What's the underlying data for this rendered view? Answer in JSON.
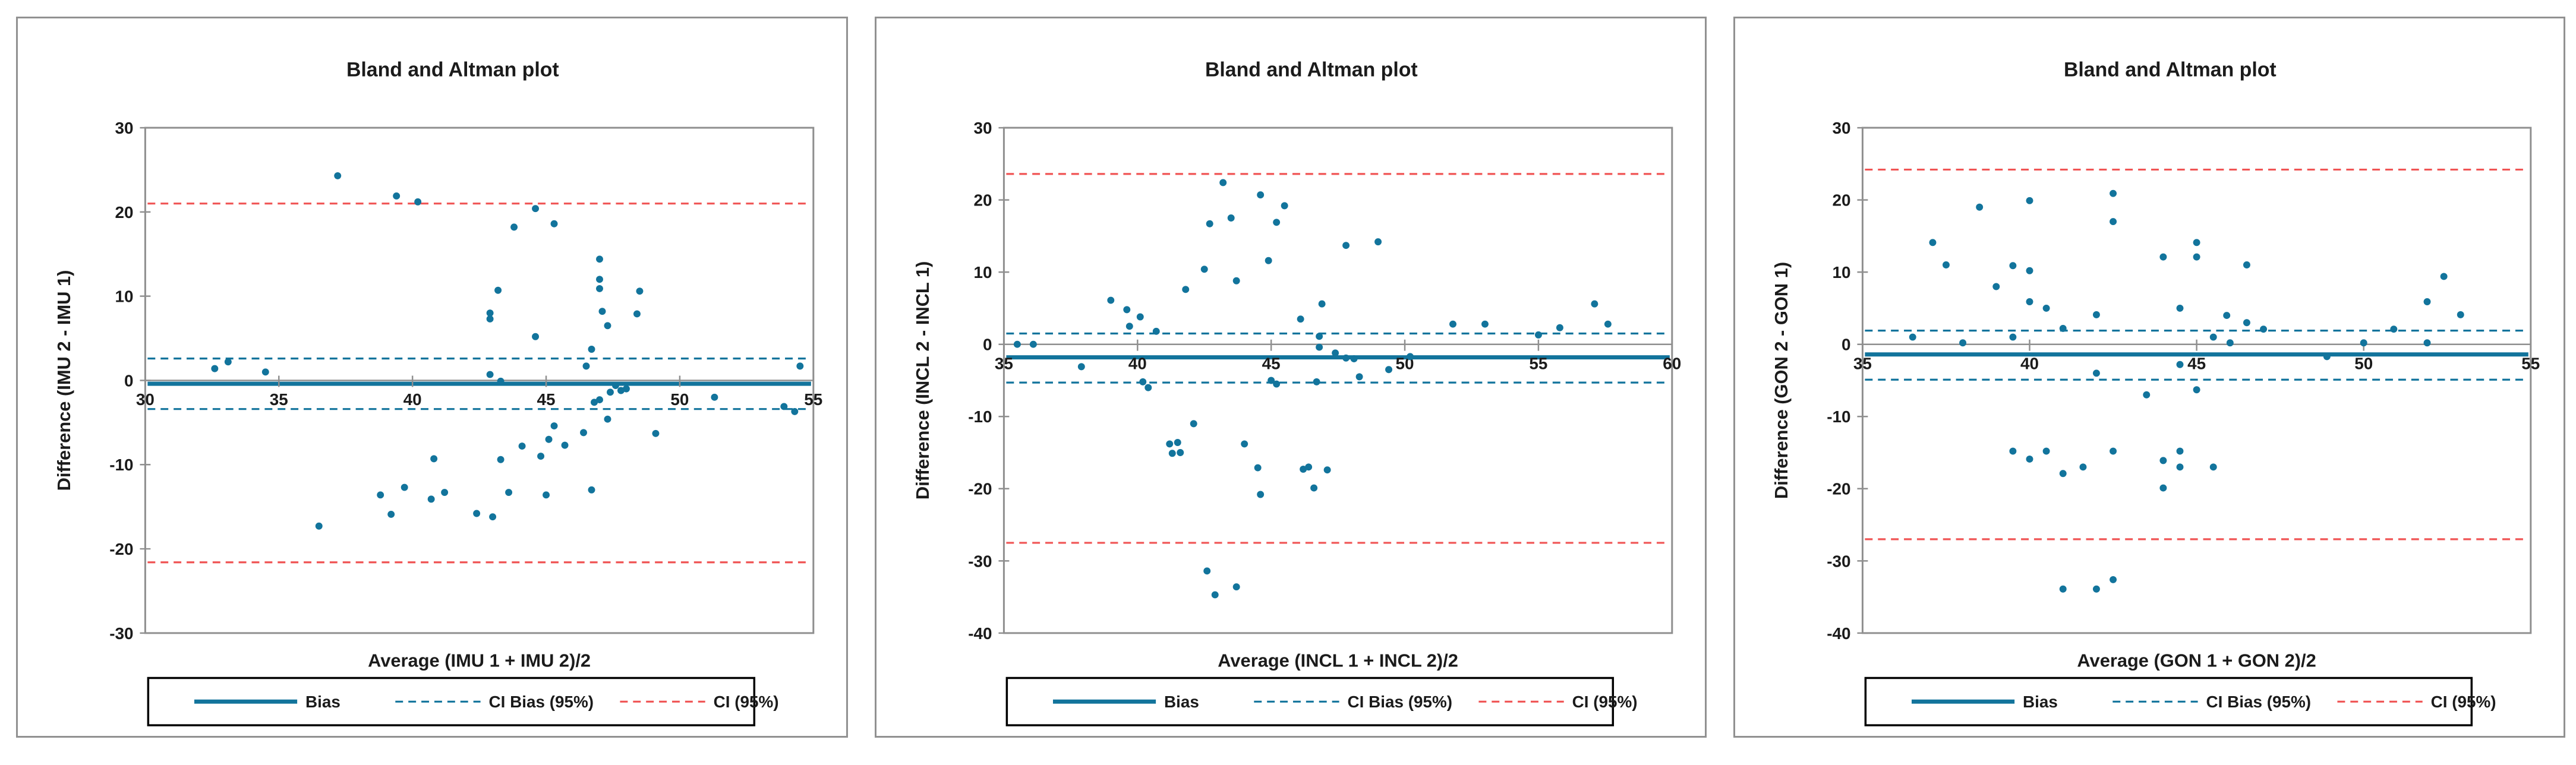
{
  "page": {
    "background": "#ffffff"
  },
  "colors": {
    "teal": "#12749c",
    "red": "#f05454",
    "axis": "#8f8f8f",
    "text": "#1b1b1b",
    "panel_border": "#919191",
    "legend_border": "#000000"
  },
  "legend": {
    "items": [
      {
        "label": "Bias",
        "style": "solid",
        "color_key": "teal"
      },
      {
        "label": "CI Bias (95%)",
        "style": "dashed",
        "color_key": "teal"
      },
      {
        "label": "CI (95%)",
        "style": "dashed",
        "color_key": "red"
      }
    ]
  },
  "chart_data": [
    {
      "type": "scatter",
      "title": "Bland and Altman plot",
      "xlabel": "Average (IMU 1 + IMU 2)/2",
      "ylabel": "Difference (IMU 2 - IMU 1)",
      "xlim": [
        30,
        55
      ],
      "ylim": [
        -30,
        30
      ],
      "x_ticks": [
        30,
        35,
        40,
        45,
        50,
        55
      ],
      "y_ticks": [
        -30,
        -20,
        -10,
        0,
        10,
        20,
        30
      ],
      "bias": -0.4,
      "ci_bias": [
        -3.4,
        2.6
      ],
      "ci": [
        -21.6,
        21.0
      ],
      "points": [
        [
          37.2,
          24.3
        ],
        [
          39.4,
          21.9
        ],
        [
          40.2,
          21.2
        ],
        [
          44.6,
          20.4
        ],
        [
          45.3,
          18.6
        ],
        [
          43.8,
          18.2
        ],
        [
          47.0,
          14.4
        ],
        [
          47.0,
          12.0
        ],
        [
          47.0,
          10.9
        ],
        [
          43.2,
          10.7
        ],
        [
          48.5,
          10.6
        ],
        [
          47.1,
          8.2
        ],
        [
          42.9,
          8.0
        ],
        [
          48.4,
          7.9
        ],
        [
          42.9,
          7.3
        ],
        [
          47.3,
          6.5
        ],
        [
          44.6,
          5.2
        ],
        [
          46.7,
          3.7
        ],
        [
          33.1,
          2.2
        ],
        [
          46.5,
          1.7
        ],
        [
          54.5,
          1.7
        ],
        [
          32.6,
          1.4
        ],
        [
          34.5,
          1.0
        ],
        [
          42.9,
          0.7
        ],
        [
          43.3,
          -0.1
        ],
        [
          47.6,
          -0.6
        ],
        [
          48.0,
          -1.0
        ],
        [
          47.8,
          -1.2
        ],
        [
          47.4,
          -1.4
        ],
        [
          51.3,
          -2.0
        ],
        [
          47.0,
          -2.3
        ],
        [
          46.8,
          -2.6
        ],
        [
          53.9,
          -3.1
        ],
        [
          54.3,
          -3.7
        ],
        [
          47.3,
          -4.6
        ],
        [
          45.3,
          -5.4
        ],
        [
          46.4,
          -6.2
        ],
        [
          49.1,
          -6.3
        ],
        [
          45.1,
          -7.0
        ],
        [
          45.7,
          -7.7
        ],
        [
          44.1,
          -7.8
        ],
        [
          44.8,
          -9.0
        ],
        [
          40.8,
          -9.3
        ],
        [
          43.3,
          -9.4
        ],
        [
          39.7,
          -12.7
        ],
        [
          46.7,
          -13.0
        ],
        [
          41.2,
          -13.3
        ],
        [
          43.6,
          -13.3
        ],
        [
          38.8,
          -13.6
        ],
        [
          45.0,
          -13.6
        ],
        [
          40.7,
          -14.1
        ],
        [
          42.4,
          -15.8
        ],
        [
          39.2,
          -15.9
        ],
        [
          43.0,
          -16.2
        ],
        [
          36.5,
          -17.3
        ]
      ]
    },
    {
      "type": "scatter",
      "title": "Bland and Altman plot",
      "xlabel": "Average (INCL 1 + INCL 2)/2",
      "ylabel": "Difference (INCL 2 - INCL 1)",
      "xlim": [
        35,
        60
      ],
      "ylim": [
        -40,
        30
      ],
      "x_ticks": [
        35,
        40,
        45,
        50,
        55,
        60
      ],
      "y_ticks": [
        -40,
        -30,
        -20,
        -10,
        0,
        10,
        20,
        30
      ],
      "bias": -1.8,
      "ci_bias": [
        -5.3,
        1.5
      ],
      "ci": [
        -27.5,
        23.6
      ],
      "points": [
        [
          35.5,
          0.0
        ],
        [
          36.1,
          0.0
        ],
        [
          37.9,
          -3.1
        ],
        [
          39.0,
          6.1
        ],
        [
          39.6,
          4.8
        ],
        [
          40.1,
          3.8
        ],
        [
          39.7,
          2.5
        ],
        [
          40.7,
          1.8
        ],
        [
          40.2,
          -5.2
        ],
        [
          40.4,
          -6.0
        ],
        [
          41.2,
          -13.8
        ],
        [
          41.5,
          -13.6
        ],
        [
          41.3,
          -15.1
        ],
        [
          41.6,
          -15.0
        ],
        [
          41.8,
          7.6
        ],
        [
          42.1,
          -11.0
        ],
        [
          42.5,
          10.4
        ],
        [
          42.6,
          -31.4
        ],
        [
          42.7,
          16.7
        ],
        [
          42.9,
          -34.7
        ],
        [
          43.2,
          22.4
        ],
        [
          43.5,
          17.5
        ],
        [
          43.7,
          8.8
        ],
        [
          43.7,
          -33.6
        ],
        [
          44.0,
          -13.8
        ],
        [
          44.5,
          -17.1
        ],
        [
          44.6,
          -20.8
        ],
        [
          44.6,
          20.7
        ],
        [
          44.9,
          11.6
        ],
        [
          45.0,
          -5.0
        ],
        [
          45.2,
          -5.5
        ],
        [
          45.2,
          16.9
        ],
        [
          45.5,
          19.2
        ],
        [
          46.1,
          3.5
        ],
        [
          46.2,
          -17.3
        ],
        [
          46.4,
          -17.0
        ],
        [
          46.6,
          -19.9
        ],
        [
          46.7,
          -5.2
        ],
        [
          46.8,
          -0.4
        ],
        [
          46.8,
          1.1
        ],
        [
          46.9,
          5.6
        ],
        [
          47.1,
          -17.4
        ],
        [
          47.4,
          -1.2
        ],
        [
          47.8,
          -1.9
        ],
        [
          47.8,
          13.7
        ],
        [
          48.1,
          -2.0
        ],
        [
          48.3,
          -4.5
        ],
        [
          49.0,
          14.2
        ],
        [
          49.4,
          -3.5
        ],
        [
          50.2,
          -1.7
        ],
        [
          51.8,
          2.8
        ],
        [
          53.0,
          2.8
        ],
        [
          55.0,
          1.3
        ],
        [
          55.8,
          2.3
        ],
        [
          57.1,
          5.6
        ],
        [
          57.6,
          2.8
        ]
      ]
    },
    {
      "type": "scatter",
      "title": "Bland and Altman plot",
      "xlabel": "Average (GON 1 + GON 2)/2",
      "ylabel": "Difference (GON 2 - GON 1)",
      "xlim": [
        35,
        55
      ],
      "ylim": [
        -40,
        30
      ],
      "x_ticks": [
        35,
        40,
        45,
        50,
        55
      ],
      "y_ticks": [
        -40,
        -30,
        -20,
        -10,
        0,
        10,
        20,
        30
      ],
      "bias": -1.4,
      "ci_bias": [
        -4.9,
        1.9
      ],
      "ci": [
        -27.0,
        24.2
      ],
      "points": [
        [
          36.5,
          1.0
        ],
        [
          37.1,
          14.1
        ],
        [
          37.5,
          11.0
        ],
        [
          38.0,
          0.2
        ],
        [
          38.5,
          19.0
        ],
        [
          39.0,
          8.0
        ],
        [
          39.5,
          10.9
        ],
        [
          39.5,
          1.0
        ],
        [
          39.5,
          -14.8
        ],
        [
          40.0,
          19.9
        ],
        [
          40.0,
          10.2
        ],
        [
          40.0,
          5.9
        ],
        [
          40.0,
          -15.9
        ],
        [
          40.5,
          5.0
        ],
        [
          40.5,
          -14.8
        ],
        [
          41.0,
          2.2
        ],
        [
          41.0,
          -17.9
        ],
        [
          41.0,
          -33.9
        ],
        [
          41.6,
          -17.0
        ],
        [
          42.0,
          4.1
        ],
        [
          42.0,
          -4.0
        ],
        [
          42.0,
          -33.9
        ],
        [
          42.5,
          20.9
        ],
        [
          42.5,
          17.0
        ],
        [
          42.5,
          -14.8
        ],
        [
          42.5,
          -32.6
        ],
        [
          43.5,
          -7.0
        ],
        [
          44.0,
          12.1
        ],
        [
          44.0,
          -16.1
        ],
        [
          44.0,
          -19.9
        ],
        [
          44.5,
          5.0
        ],
        [
          44.5,
          -2.8
        ],
        [
          44.5,
          -14.8
        ],
        [
          44.5,
          -17.0
        ],
        [
          45.0,
          14.1
        ],
        [
          45.0,
          12.1
        ],
        [
          45.0,
          -6.3
        ],
        [
          45.5,
          1.0
        ],
        [
          45.5,
          -17.0
        ],
        [
          45.9,
          4.0
        ],
        [
          46.0,
          0.2
        ],
        [
          46.5,
          11.0
        ],
        [
          46.5,
          3.0
        ],
        [
          47.0,
          2.1
        ],
        [
          48.9,
          -1.7
        ],
        [
          50.0,
          0.2
        ],
        [
          50.9,
          2.1
        ],
        [
          51.9,
          5.9
        ],
        [
          51.9,
          0.2
        ],
        [
          52.4,
          9.4
        ],
        [
          52.9,
          4.1
        ]
      ]
    }
  ]
}
